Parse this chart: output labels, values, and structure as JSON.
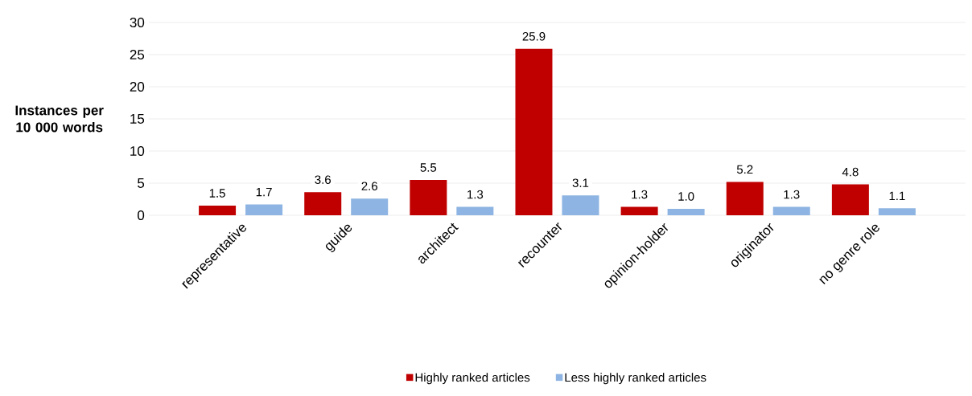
{
  "chart_data": {
    "type": "bar",
    "ylabel": "Instances per 10 000 words",
    "categories": [
      "representative",
      "guide",
      "architect",
      "recounter",
      "opinion-holder",
      "originator",
      "no genre role"
    ],
    "series": [
      {
        "name": "Highly ranked articles",
        "color": "#c00000",
        "values": [
          1.5,
          3.6,
          5.5,
          25.9,
          1.3,
          5.2,
          4.8
        ],
        "value_labels": [
          "1.5",
          "3.6",
          "5.5",
          "25.9",
          "1.3",
          "5.2",
          "4.8"
        ]
      },
      {
        "name": "Less highly ranked articles",
        "color": "#8db4e2",
        "values": [
          1.7,
          2.6,
          1.3,
          3.1,
          1.0,
          1.3,
          1.1
        ],
        "value_labels": [
          "1.7",
          "2.6",
          "1.3",
          "3.1",
          "1.0",
          "1.3",
          "1.1"
        ]
      }
    ],
    "ylim": [
      0,
      30
    ],
    "yticks": [
      0,
      5,
      10,
      15,
      20,
      25,
      30
    ],
    "grid": "y",
    "legend": "bottom"
  }
}
